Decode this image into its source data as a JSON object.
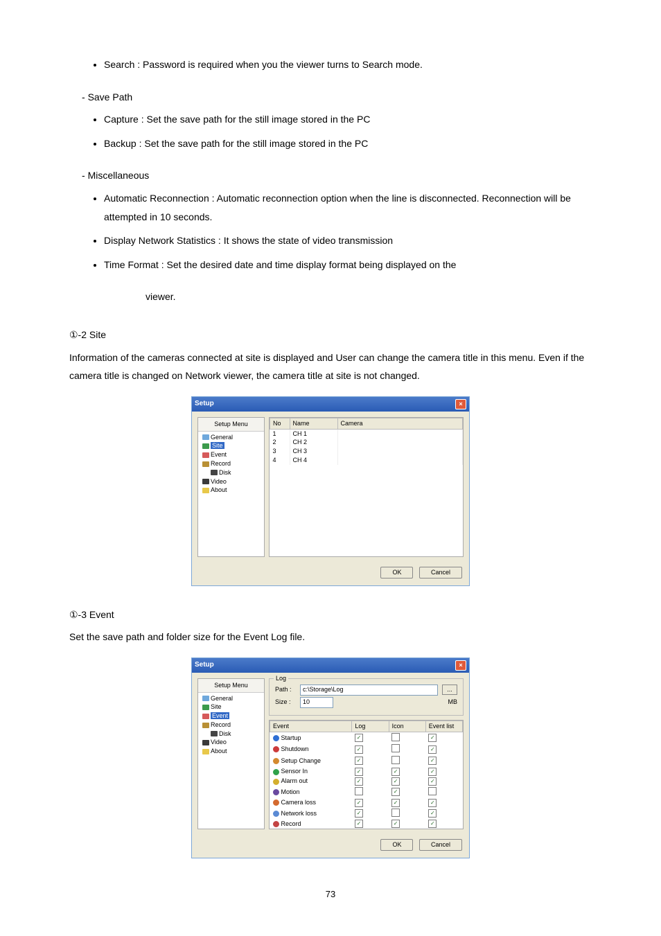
{
  "bullets_top": [
    "Search : Password is required when you the viewer turns to Search mode."
  ],
  "sections": [
    {
      "heading": "Save Path",
      "items": [
        "Capture : Set the save path for the still image stored in the PC",
        "Backup : Set the save path for the still image stored in the PC"
      ]
    },
    {
      "heading": "Miscellaneous",
      "items": [
        "Automatic Reconnection : Automatic reconnection option when the line is disconnected. Reconnection will be attempted in 10 seconds.",
        "Display Network Statistics : It shows the state of video transmission",
        "Time Format : Set the desired date and time display format being displayed on the"
      ],
      "trailing": "viewer."
    }
  ],
  "site_section": {
    "heading": "①-2 Site",
    "text": "Information of the cameras connected at site is displayed and User can change the camera title in this menu. Even if the camera title is changed on Network viewer, the camera title at site is not changed."
  },
  "event_section": {
    "heading": "①-3 Event",
    "text": "Set the save path and folder size for the Event Log file."
  },
  "dialog": {
    "title": "Setup",
    "menu_title": "Setup Menu",
    "menu": [
      {
        "label": "General",
        "color": "#6fa8dc"
      },
      {
        "label": "Site",
        "color": "#3c9b4c",
        "selected": true
      },
      {
        "label": "Event",
        "color": "#d65a5a"
      },
      {
        "label": "Record",
        "color": "#b99035"
      },
      {
        "label": "Disk",
        "color": "#444444",
        "sub": true
      },
      {
        "label": "Video",
        "color": "#3a3a3a"
      },
      {
        "label": "About",
        "color": "#e8c84a"
      }
    ],
    "cols": [
      "No",
      "Name",
      "Camera"
    ],
    "rows": [
      [
        "1",
        "CH 1",
        ""
      ],
      [
        "2",
        "CH 2",
        ""
      ],
      [
        "3",
        "CH 3",
        ""
      ],
      [
        "4",
        "CH 4",
        ""
      ]
    ],
    "ok": "OK",
    "cancel": "Cancel"
  },
  "event_dialog": {
    "title": "Setup",
    "log_legend": "Log",
    "path_label": "Path :",
    "path_value": "c:\\Storage\\Log",
    "size_label": "Size :",
    "size_value": "10",
    "size_unit": "MB",
    "browse": "...",
    "ev_cols": [
      "Event",
      "Log",
      "Icon",
      "Event list"
    ],
    "ev_rows": [
      {
        "name": "Startup",
        "color": "#2f6fd4",
        "log": true,
        "icon": false,
        "list": true
      },
      {
        "name": "Shutdown",
        "color": "#cc3b3b",
        "log": true,
        "icon": false,
        "list": true
      },
      {
        "name": "Setup Change",
        "color": "#d48a2f",
        "log": true,
        "icon": false,
        "list": true
      },
      {
        "name": "Sensor In",
        "color": "#2fa24a",
        "log": true,
        "icon": true,
        "list": true
      },
      {
        "name": "Alarm out",
        "color": "#d4af2f",
        "log": true,
        "icon": true,
        "list": true
      },
      {
        "name": "Motion",
        "color": "#6a4aa0",
        "log": false,
        "icon": true,
        "list": false
      },
      {
        "name": "Camera loss",
        "color": "#d46a2f",
        "log": true,
        "icon": true,
        "list": true
      },
      {
        "name": "Network loss",
        "color": "#5a8ad4",
        "log": true,
        "icon": false,
        "list": true
      },
      {
        "name": "Record",
        "color": "#c34444",
        "log": true,
        "icon": true,
        "list": true
      }
    ]
  },
  "page_number": "73"
}
